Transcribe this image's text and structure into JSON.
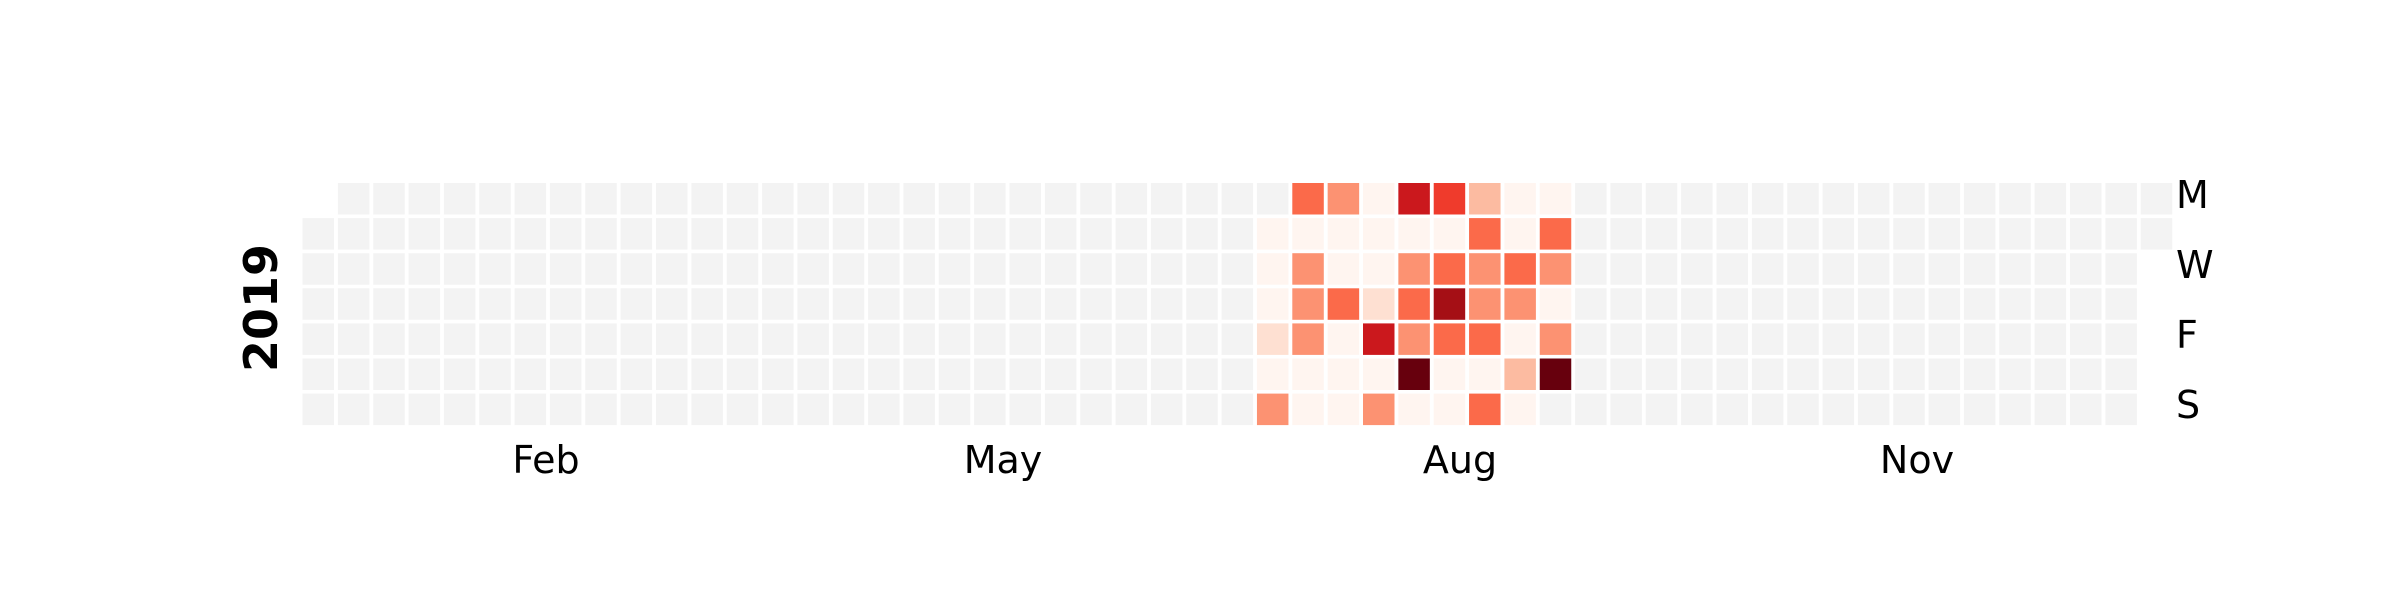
{
  "chart_data": {
    "type": "heatmap",
    "title": "",
    "year": "2019",
    "month_ticks": [
      "Feb",
      "May",
      "Aug",
      "Nov"
    ],
    "day_ticks": [
      "M",
      "W",
      "F",
      "S"
    ],
    "colors": {
      "empty": "#f3f3f3",
      "scale": [
        "#fff5f0",
        "#fee0d2",
        "#fcbba1",
        "#fc9272",
        "#fb6a4a",
        "#ef3b2c",
        "#cb181d",
        "#a50f15",
        "#67000d"
      ]
    },
    "active_weeks": [
      27,
      28,
      29,
      30,
      31,
      32,
      33,
      34,
      35,
      36
    ],
    "values": [
      [
        null,
        0,
        0,
        0,
        1,
        0,
        3
      ],
      [
        4,
        0,
        3,
        3,
        3,
        0,
        0
      ],
      [
        3,
        0,
        0,
        4,
        0,
        0,
        0
      ],
      [
        0,
        0,
        0,
        1,
        6,
        0,
        3
      ],
      [
        6,
        0,
        3,
        4,
        3,
        8,
        0
      ],
      [
        5,
        0,
        4,
        7,
        4,
        0,
        0
      ],
      [
        2,
        4,
        3,
        3,
        4,
        0,
        4
      ],
      [
        0,
        0,
        4,
        3,
        0,
        2,
        0
      ],
      [
        0,
        4,
        3,
        0,
        3,
        8,
        null
      ],
      [
        null,
        null,
        null,
        null,
        null,
        null,
        null
      ]
    ]
  }
}
